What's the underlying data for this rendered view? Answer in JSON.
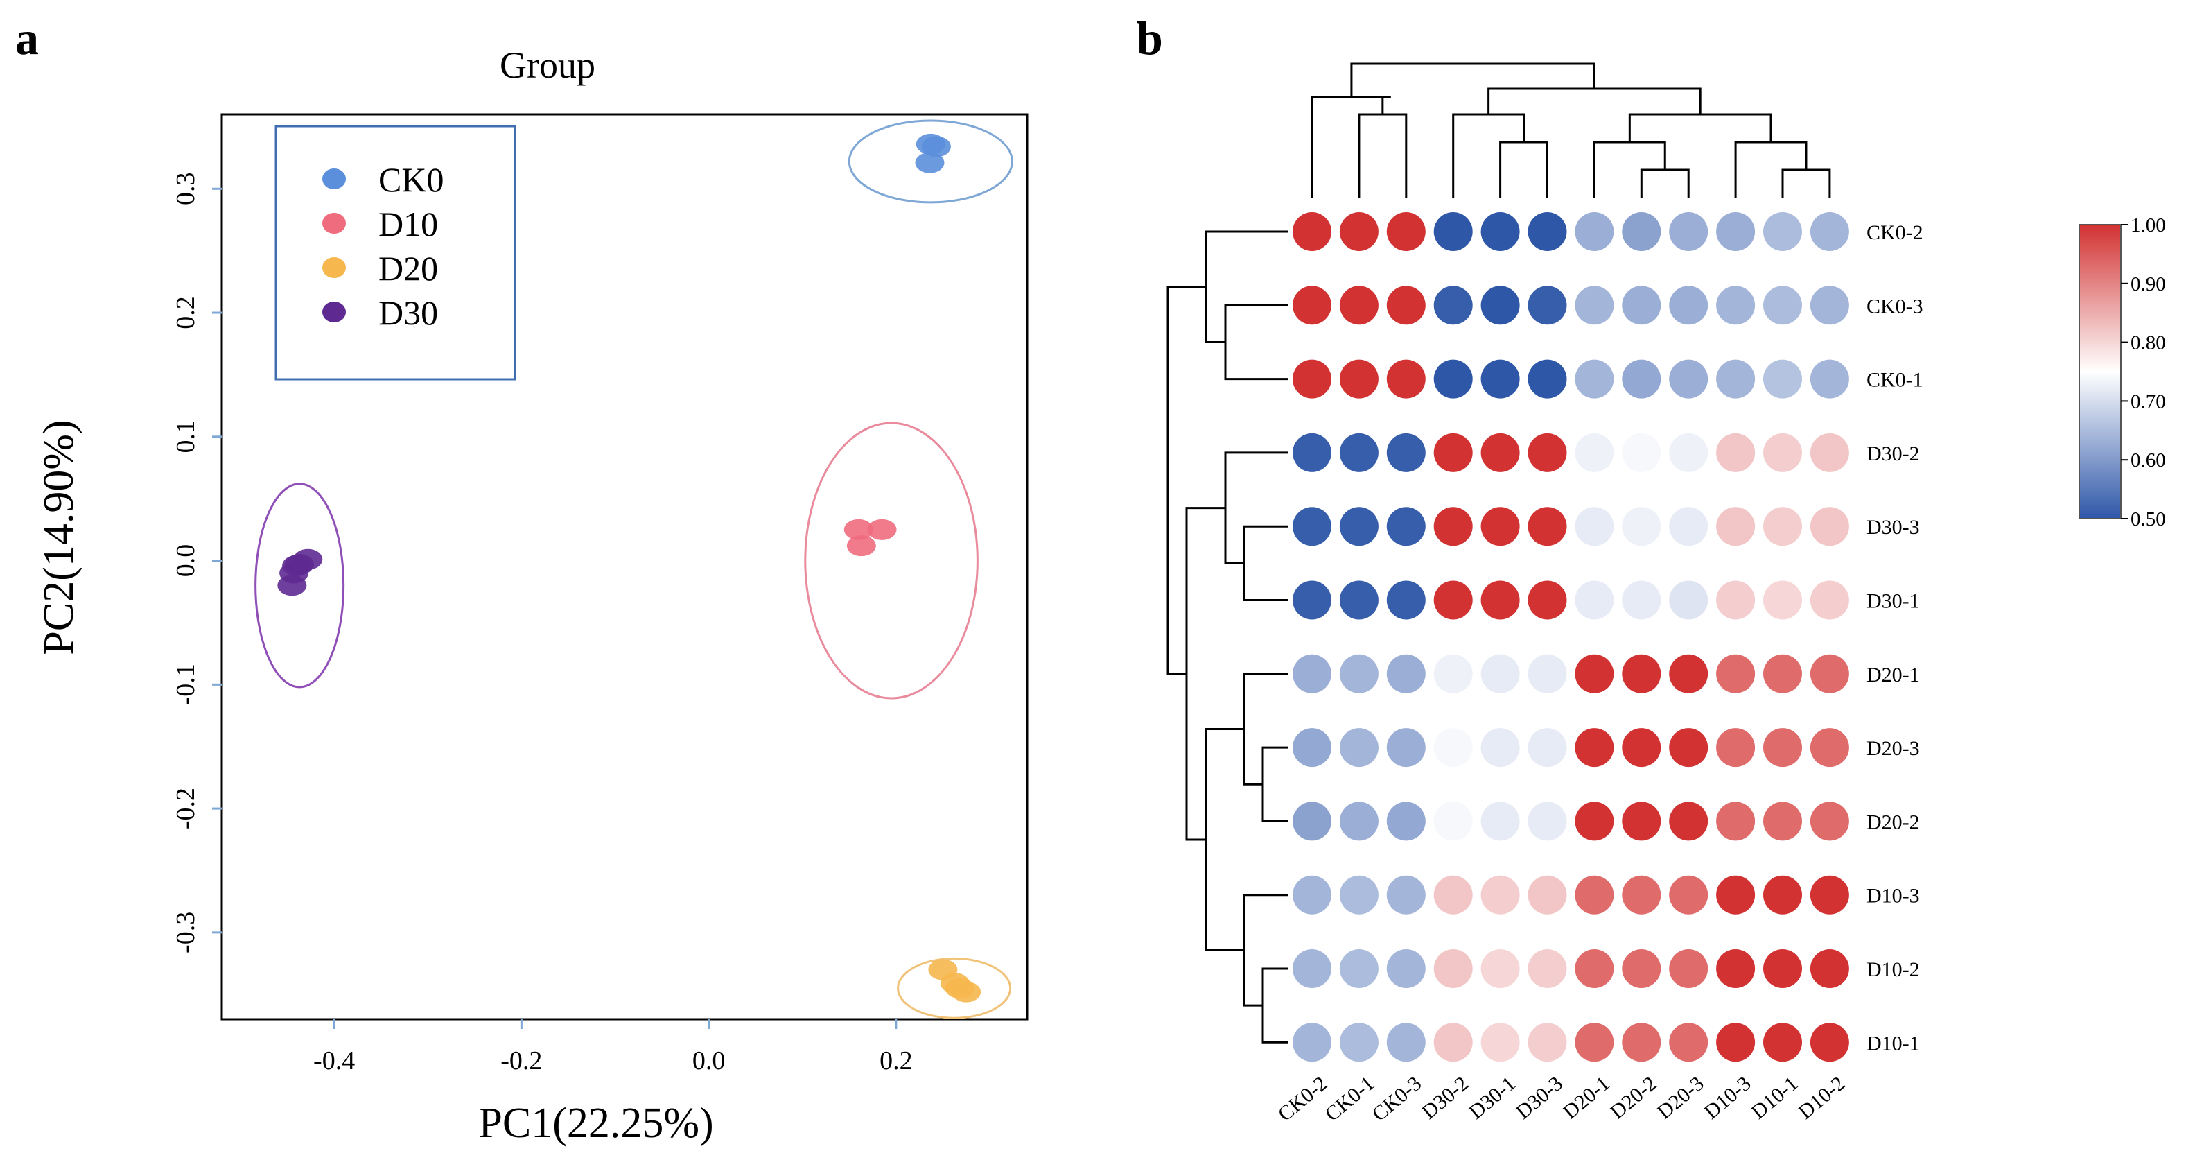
{
  "panels": {
    "a": "a",
    "b": "b"
  },
  "chart_data": [
    {
      "type": "scatter",
      "panel": "a",
      "title": "Group",
      "xlabel": "PC1(22.25%)",
      "ylabel": "PC2(14.90%)",
      "xlim": [
        -0.52,
        0.34
      ],
      "ylim": [
        -0.37,
        0.36
      ],
      "xticks": [
        -0.4,
        -0.2,
        0.0,
        0.2
      ],
      "xtick_labels": [
        "-0.4",
        "-0.2",
        "0.0",
        "0.2"
      ],
      "yticks": [
        0.3,
        0.2,
        0.1,
        0.0,
        -0.1,
        -0.2,
        -0.3
      ],
      "ytick_labels": [
        "0.3",
        "0.2",
        "0.1",
        "0.0",
        "-0.1",
        "-0.2",
        "-0.3"
      ],
      "grid": false,
      "legend_position": "top-left",
      "series": [
        {
          "name": "CK0",
          "color": "#5b8fdc",
          "points": [
            [
              0.237,
              0.336
            ],
            [
              0.243,
              0.334
            ],
            [
              0.236,
              0.321
            ]
          ],
          "ellipse": {
            "cx": 0.237,
            "cy": 0.322,
            "rx": 0.087,
            "ry": 0.033,
            "color": "#7ea7d6"
          }
        },
        {
          "name": "D10",
          "color": "#ef6b7e",
          "points": [
            [
              0.16,
              0.025
            ],
            [
              0.185,
              0.025
            ],
            [
              0.163,
              0.012
            ]
          ],
          "ellipse": {
            "cx": 0.195,
            "cy": 0.0,
            "rx": 0.092,
            "ry": 0.111,
            "color": "#e98b9c"
          }
        },
        {
          "name": "D20",
          "color": "#f6b74f",
          "points": [
            [
              0.25,
              -0.33
            ],
            [
              0.263,
              -0.341
            ],
            [
              0.275,
              -0.348
            ],
            [
              0.268,
              -0.345
            ]
          ],
          "ellipse": {
            "cx": 0.262,
            "cy": -0.345,
            "rx": 0.06,
            "ry": 0.024,
            "color": "#f1c37a"
          }
        },
        {
          "name": "D30",
          "color": "#5e2a91",
          "points": [
            [
              -0.445,
              -0.02
            ],
            [
              -0.443,
              -0.01
            ],
            [
              -0.437,
              -0.003
            ],
            [
              -0.428,
              0.001
            ],
            [
              -0.44,
              -0.004
            ]
          ],
          "ellipse": {
            "cx": -0.437,
            "cy": -0.02,
            "rx": 0.047,
            "ry": 0.082,
            "color": "#8f4fb7"
          }
        }
      ]
    },
    {
      "type": "heatmap",
      "panel": "b",
      "columns": [
        "CK0-2",
        "CK0-1",
        "CK0-3",
        "D30-2",
        "D30-1",
        "D30-3",
        "D20-1",
        "D20-2",
        "D20-3",
        "D10-3",
        "D10-1",
        "D10-2"
      ],
      "rows": [
        "CK0-2",
        "CK0-3",
        "CK0-1",
        "D30-2",
        "D30-3",
        "D30-1",
        "D20-1",
        "D20-3",
        "D20-2",
        "D10-3",
        "D10-2",
        "D10-1"
      ],
      "values": [
        [
          1.0,
          1.0,
          1.0,
          0.5,
          0.5,
          0.5,
          0.63,
          0.61,
          0.63,
          0.63,
          0.65,
          0.64
        ],
        [
          1.0,
          1.0,
          1.0,
          0.51,
          0.5,
          0.51,
          0.64,
          0.63,
          0.63,
          0.64,
          0.65,
          0.64
        ],
        [
          1.0,
          1.0,
          1.0,
          0.5,
          0.5,
          0.5,
          0.64,
          0.62,
          0.63,
          0.64,
          0.66,
          0.64
        ],
        [
          0.51,
          0.51,
          0.51,
          1.0,
          1.0,
          1.0,
          0.73,
          0.74,
          0.73,
          0.82,
          0.81,
          0.82
        ],
        [
          0.51,
          0.51,
          0.51,
          1.0,
          1.0,
          1.0,
          0.72,
          0.73,
          0.72,
          0.82,
          0.81,
          0.82
        ],
        [
          0.51,
          0.51,
          0.51,
          1.0,
          1.0,
          1.0,
          0.72,
          0.72,
          0.71,
          0.81,
          0.8,
          0.81
        ],
        [
          0.63,
          0.64,
          0.63,
          0.73,
          0.72,
          0.72,
          1.0,
          1.0,
          1.0,
          0.93,
          0.93,
          0.93
        ],
        [
          0.62,
          0.64,
          0.63,
          0.74,
          0.72,
          0.72,
          1.0,
          1.0,
          1.0,
          0.93,
          0.93,
          0.93
        ],
        [
          0.61,
          0.63,
          0.62,
          0.74,
          0.72,
          0.72,
          1.0,
          1.0,
          1.0,
          0.93,
          0.93,
          0.93
        ],
        [
          0.64,
          0.65,
          0.64,
          0.82,
          0.81,
          0.82,
          0.93,
          0.93,
          0.93,
          1.0,
          1.0,
          1.0
        ],
        [
          0.64,
          0.65,
          0.64,
          0.82,
          0.8,
          0.81,
          0.93,
          0.93,
          0.93,
          1.0,
          1.0,
          1.0
        ],
        [
          0.64,
          0.65,
          0.64,
          0.82,
          0.8,
          0.81,
          0.93,
          0.93,
          0.93,
          1.0,
          1.0,
          1.0
        ]
      ],
      "colorbar": {
        "range": [
          0.5,
          1.0
        ],
        "ticks": [
          1.0,
          0.9,
          0.8,
          0.7,
          0.6,
          0.5
        ],
        "tick_labels": [
          "1.00",
          "0.90",
          "0.80",
          "0.70",
          "0.60",
          "0.50"
        ],
        "color_low": "#2f57a8",
        "color_mid": "#ffffff",
        "color_high": "#d23232"
      },
      "column_dendrogram": [
        [
          0,
          3,
          0.38,
          0.22
        ],
        [
          1,
          2,
          0.38,
          0.3
        ],
        [
          3,
          5,
          0.38,
          0.2
        ],
        [
          4,
          5,
          0.38,
          0.3
        ],
        [
          6,
          7,
          0.38,
          0.2
        ],
        [
          7,
          8,
          0.38,
          0.3
        ],
        [
          9,
          10,
          0.38,
          0.22
        ],
        [
          10,
          11,
          0.38,
          0.3
        ]
      ]
    }
  ]
}
